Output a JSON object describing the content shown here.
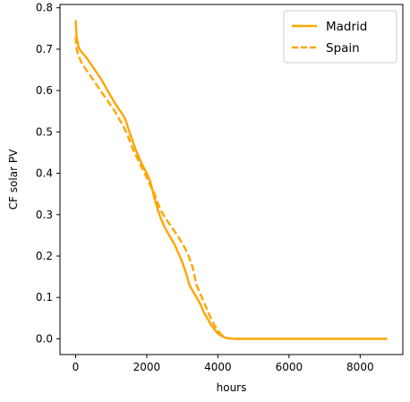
{
  "chart_data": {
    "type": "line",
    "title": "",
    "xlabel": "hours",
    "ylabel": "CF solar PV",
    "xlim": [
      -440,
      9200
    ],
    "ylim": [
      -0.038,
      0.808
    ],
    "xticks": [
      0,
      2000,
      4000,
      6000,
      8000
    ],
    "yticks": [
      0.0,
      0.1,
      0.2,
      0.3,
      0.4,
      0.5,
      0.6,
      0.7,
      0.8
    ],
    "xtick_labels": [
      "0",
      "2000",
      "4000",
      "6000",
      "8000"
    ],
    "ytick_labels": [
      "0.0",
      "0.1",
      "0.2",
      "0.3",
      "0.4",
      "0.5",
      "0.6",
      "0.7",
      "0.8"
    ],
    "grid": false,
    "legend_position": "top-right",
    "line_color": "#FFA500",
    "series": [
      {
        "name": "Madrid",
        "style": "solid",
        "x": [
          0,
          30,
          80,
          150,
          300,
          500,
          700,
          900,
          1100,
          1300,
          1400,
          1550,
          1700,
          1850,
          2000,
          2100,
          2200,
          2300,
          2400,
          2500,
          2600,
          2700,
          2800,
          2900,
          3000,
          3100,
          3200,
          3300,
          3400,
          3500,
          3600,
          3700,
          3800,
          3900,
          4000,
          4100,
          4200,
          4300,
          4500,
          5000,
          6000,
          7000,
          8000,
          8760
        ],
        "y": [
          0.77,
          0.73,
          0.705,
          0.695,
          0.68,
          0.655,
          0.63,
          0.6,
          0.57,
          0.545,
          0.53,
          0.49,
          0.455,
          0.425,
          0.4,
          0.38,
          0.345,
          0.315,
          0.29,
          0.27,
          0.255,
          0.24,
          0.225,
          0.205,
          0.185,
          0.16,
          0.13,
          0.115,
          0.1,
          0.085,
          0.065,
          0.05,
          0.035,
          0.023,
          0.013,
          0.007,
          0.003,
          0.001,
          0.0,
          0.0,
          0.0,
          0.0,
          0.0,
          0.0
        ]
      },
      {
        "name": "Spain",
        "style": "dashed",
        "x": [
          0,
          30,
          80,
          150,
          300,
          500,
          700,
          900,
          1100,
          1300,
          1450,
          1600,
          1800,
          2000,
          2100,
          2200,
          2300,
          2400,
          2500,
          2700,
          2900,
          3100,
          3200,
          3300,
          3400,
          3500,
          3600,
          3700,
          3800,
          3900,
          4000,
          4100,
          4200,
          4300,
          4500,
          5000,
          6000,
          7000,
          8000,
          8760
        ],
        "y": [
          0.73,
          0.7,
          0.685,
          0.67,
          0.65,
          0.625,
          0.6,
          0.575,
          0.55,
          0.52,
          0.495,
          0.46,
          0.425,
          0.39,
          0.37,
          0.355,
          0.33,
          0.31,
          0.295,
          0.27,
          0.245,
          0.215,
          0.195,
          0.17,
          0.13,
          0.11,
          0.09,
          0.07,
          0.05,
          0.033,
          0.02,
          0.01,
          0.004,
          0.001,
          0.0,
          0.0,
          0.0,
          0.0,
          0.0,
          0.0
        ]
      }
    ]
  }
}
